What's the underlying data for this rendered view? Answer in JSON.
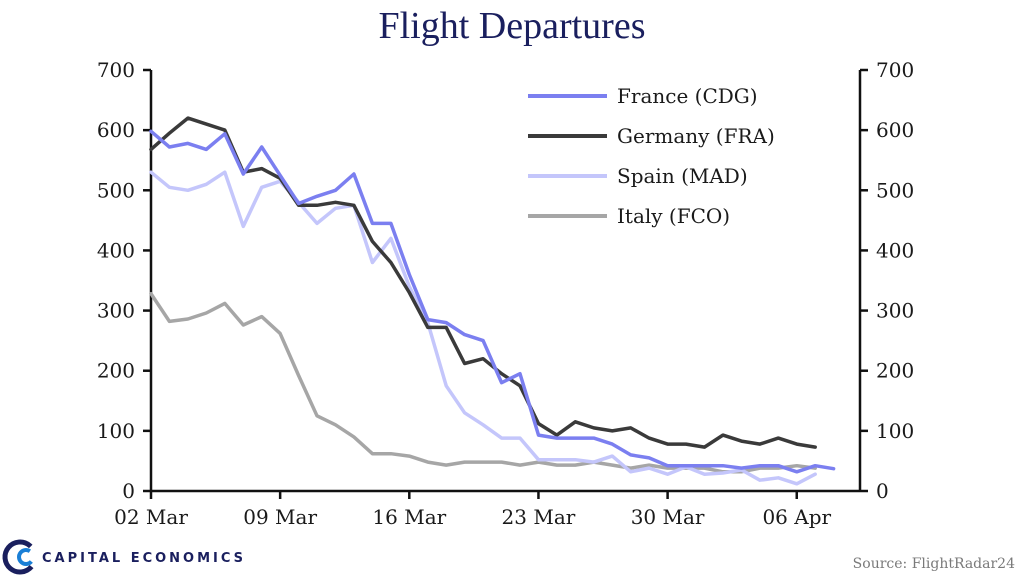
{
  "chart_data": {
    "type": "line",
    "title": "Flight Departures",
    "xlabel": "",
    "ylabel": "",
    "ylim": [
      0,
      700
    ],
    "yticks": [
      0,
      100,
      200,
      300,
      400,
      500,
      600,
      700
    ],
    "xtick_labels": [
      "02 Mar",
      "09 Mar",
      "16 Mar",
      "23 Mar",
      "30 Mar",
      "06 Apr"
    ],
    "x_start": "02 Mar",
    "grid": false,
    "legend_position": "top-right",
    "series": [
      {
        "name": "France (CDG)",
        "color": "#7b7ff0",
        "values": [
          598,
          572,
          578,
          568,
          594,
          527,
          572,
          525,
          478,
          490,
          500,
          527,
          445,
          445,
          360,
          285,
          280,
          260,
          250,
          180,
          195,
          93,
          88,
          88,
          88,
          78,
          60,
          55,
          42,
          42,
          42,
          42,
          38,
          42,
          42,
          32,
          42,
          37
        ]
      },
      {
        "name": "Germany (FRA)",
        "color": "#3a3a3a",
        "values": [
          568,
          595,
          620,
          610,
          600,
          530,
          536,
          520,
          475,
          475,
          480,
          475,
          415,
          380,
          330,
          272,
          272,
          212,
          220,
          195,
          175,
          112,
          93,
          115,
          105,
          100,
          105,
          88,
          78,
          78,
          73,
          93,
          83,
          78,
          88,
          78,
          73
        ]
      },
      {
        "name": "Spain (MAD)",
        "color": "#c4c6fb",
        "values": [
          530,
          505,
          500,
          510,
          530,
          440,
          505,
          515,
          480,
          445,
          470,
          475,
          380,
          420,
          340,
          280,
          175,
          130,
          110,
          88,
          88,
          52,
          52,
          52,
          48,
          58,
          32,
          38,
          28,
          40,
          28,
          30,
          35,
          18,
          22,
          12,
          28
        ]
      },
      {
        "name": "Italy (FCO)",
        "color": "#a6a6a6",
        "values": [
          328,
          282,
          286,
          296,
          312,
          276,
          290,
          262,
          192,
          125,
          110,
          90,
          62,
          62,
          58,
          48,
          43,
          48,
          48,
          48,
          43,
          48,
          43,
          43,
          48,
          43,
          38,
          43,
          38,
          38,
          38,
          32,
          32,
          38,
          38,
          42,
          38
        ]
      }
    ]
  },
  "branding": {
    "company": "CAPITAL ECONOMICS",
    "source": "Source: FlightRadar24"
  }
}
